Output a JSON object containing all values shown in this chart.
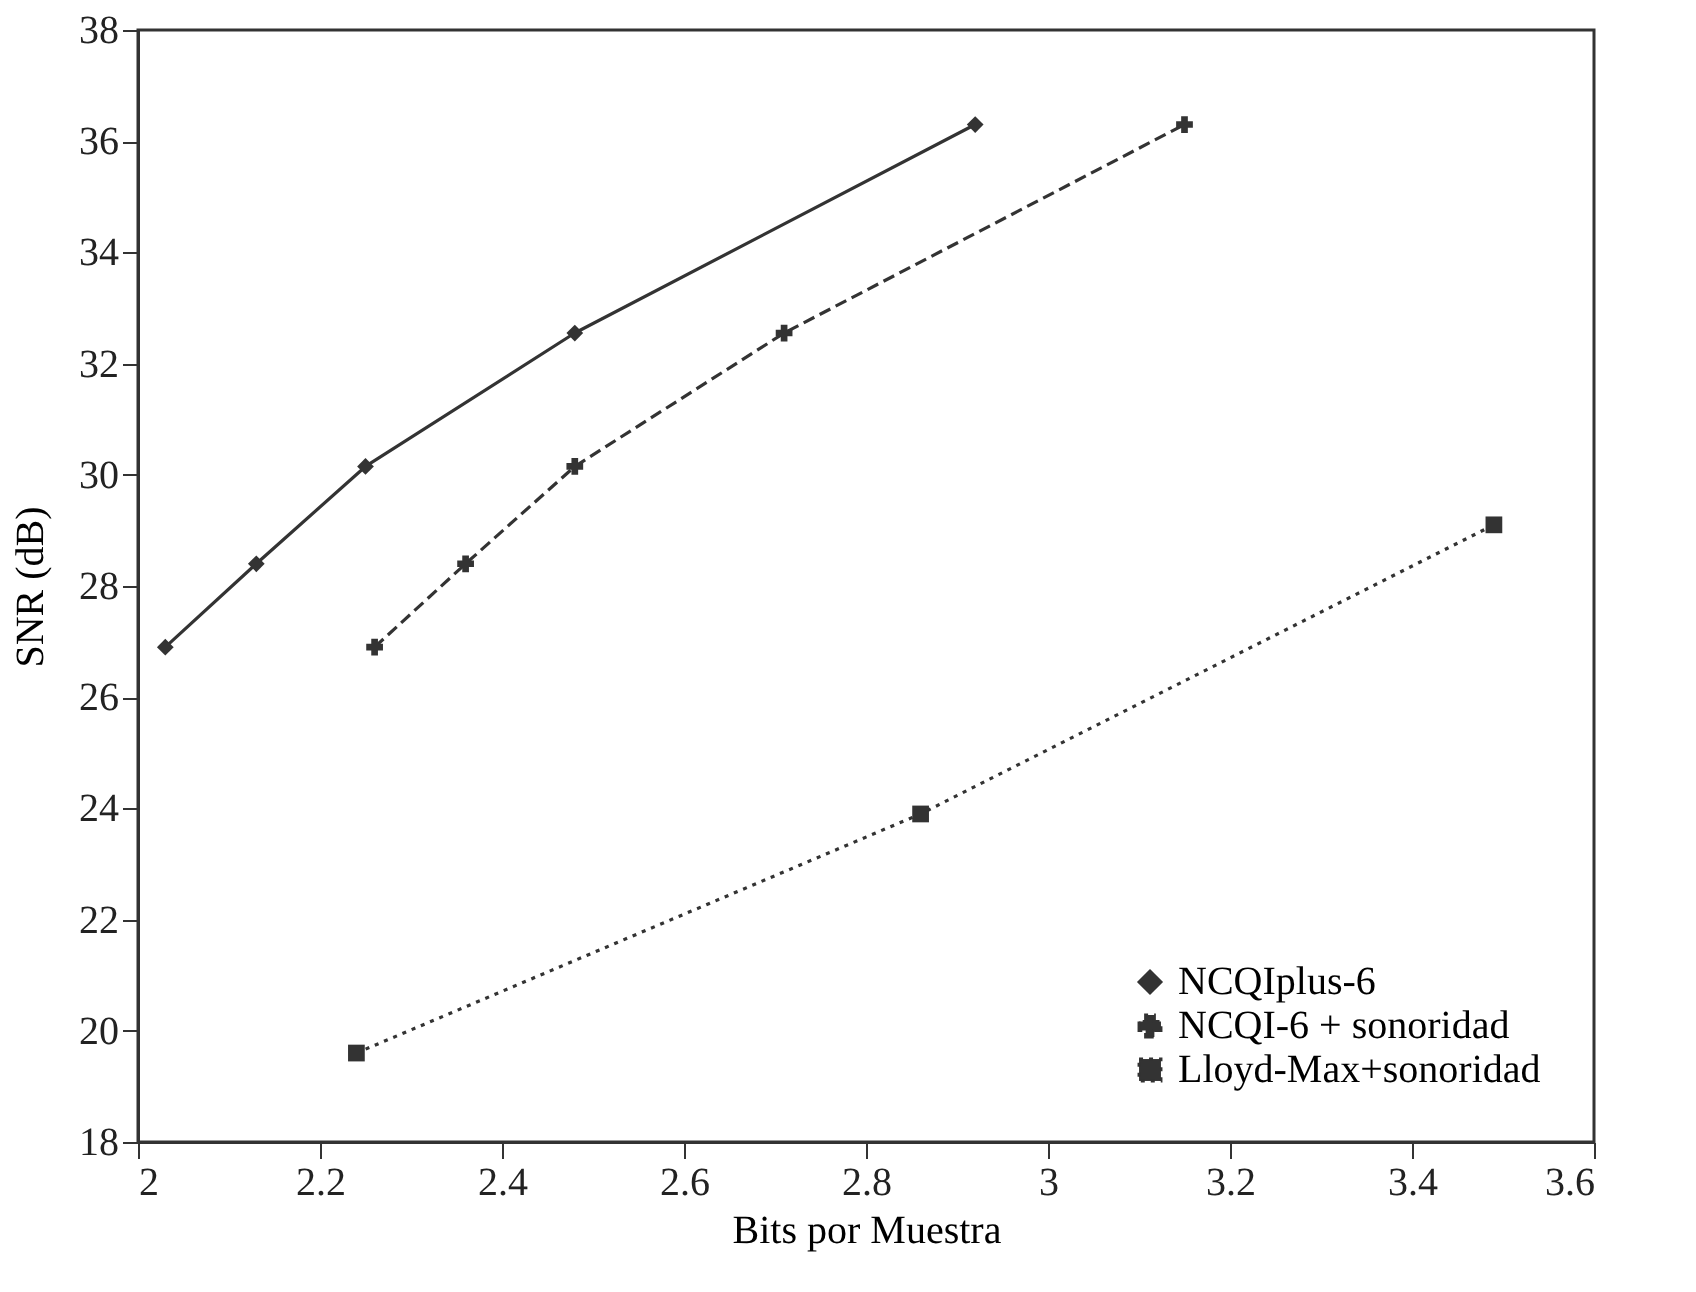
{
  "chart_data": {
    "type": "line",
    "xlabel": "Bits por Muestra",
    "ylabel": "SNR (dB)",
    "xlim": [
      2,
      3.6
    ],
    "xticks": [
      2,
      2.2,
      2.4,
      2.6,
      2.8,
      3,
      3.2,
      3.4,
      3.6
    ],
    "ylim": [
      18,
      38
    ],
    "yticks": [
      18,
      20,
      22,
      24,
      26,
      28,
      30,
      32,
      34,
      36,
      38
    ],
    "grid": false,
    "legend": "bottom right",
    "series": [
      {
        "name": "NCQIplus-6",
        "color": "#333333",
        "marker": "diamond",
        "line_style": "solid",
        "x": [
          2.03,
          2.13,
          2.25,
          2.48,
          2.92
        ],
        "values": [
          26.9,
          28.4,
          30.15,
          32.55,
          36.3
        ]
      },
      {
        "name": "NCQI-6 + sonoridad",
        "color": "#333333",
        "marker": "cross",
        "line_style": "dashed",
        "x": [
          2.26,
          2.36,
          2.48,
          2.71,
          3.15
        ],
        "values": [
          26.9,
          28.4,
          30.15,
          32.55,
          36.3
        ]
      },
      {
        "name": "Lloyd-Max+sonoridad",
        "color": "#333333",
        "marker": "square",
        "line_style": "dotted",
        "x": [
          2.24,
          2.86,
          3.49
        ],
        "values": [
          19.6,
          23.9,
          29.1
        ]
      }
    ]
  }
}
